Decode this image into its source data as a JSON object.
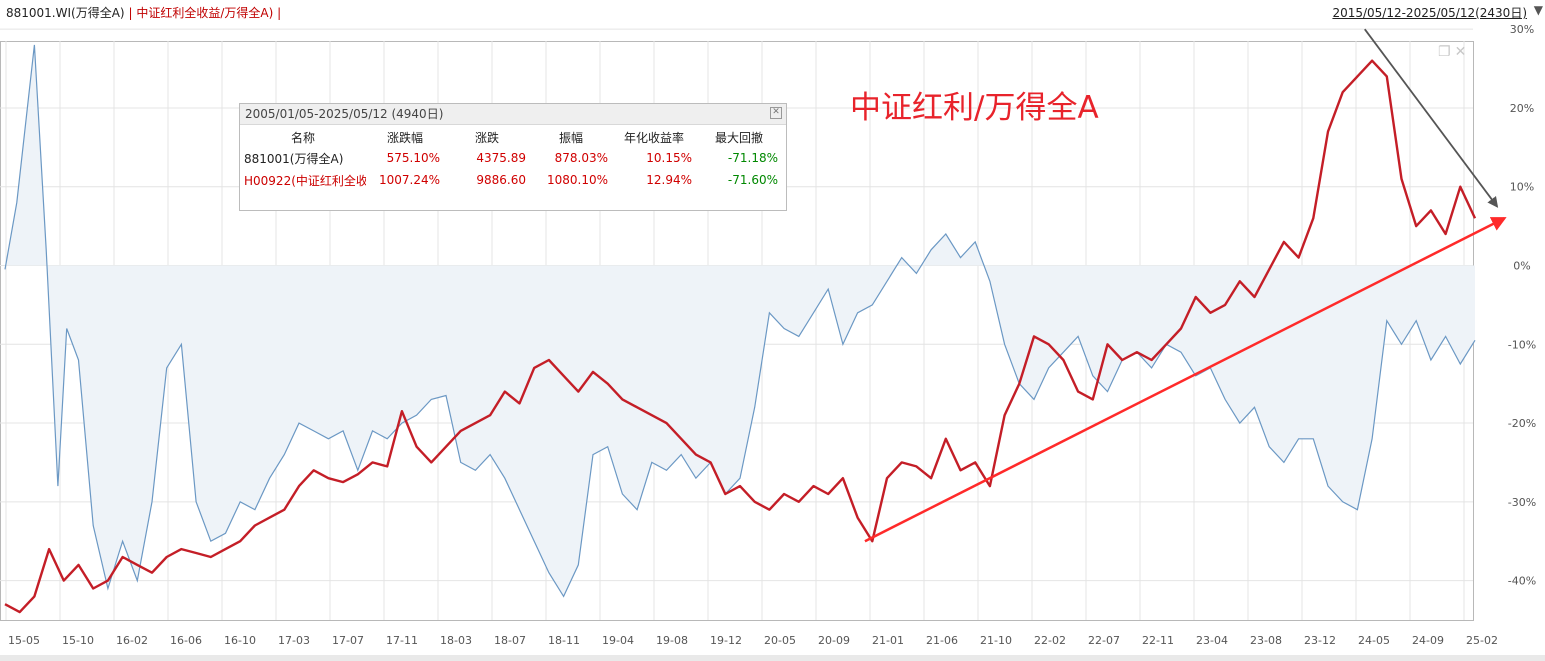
{
  "legend": {
    "main_label": "881001.WI(万得全A)",
    "separator": "|",
    "second_label": "中证红利全收益/万得全A)",
    "trailing_separator": "|"
  },
  "date_range": {
    "label": "2015/05/12-2025/05/12(2430日)",
    "dropdown_icon": "triangle-down-icon"
  },
  "window_controls": {
    "restore_icon": "restore-window-icon",
    "close_icon": "close-icon"
  },
  "annotation": {
    "text": "中证红利/万得全A"
  },
  "stats_panel": {
    "title": "2005/01/05-2025/05/12 (4940日)",
    "columns": [
      "名称",
      "涨跌幅",
      "涨跌",
      "振幅",
      "年化收益率",
      "最大回撤"
    ],
    "rows": [
      {
        "name": "881001(万得全A)",
        "pct": "575.10%",
        "change": "4375.89",
        "amplitude": "878.03%",
        "annual": "10.15%",
        "drawdown": "-71.18%"
      },
      {
        "name": "H00922(中证红利全收",
        "pct": "1007.24%",
        "change": "9886.60",
        "amplitude": "1080.10%",
        "annual": "12.94%",
        "drawdown": "-71.60%"
      }
    ],
    "colors": {
      "positive": "#d00000",
      "negative": "#008800",
      "name": "#222222",
      "name_alt": "#cc0000"
    }
  },
  "chart_data": {
    "type": "line",
    "x_ticks": [
      "15-05",
      "15-10",
      "16-02",
      "16-06",
      "16-10",
      "17-03",
      "17-07",
      "17-11",
      "18-03",
      "18-07",
      "18-11",
      "19-04",
      "19-08",
      "19-12",
      "20-05",
      "20-09",
      "21-01",
      "21-06",
      "21-10",
      "22-02",
      "22-07",
      "22-11",
      "23-04",
      "23-08",
      "23-12",
      "24-05",
      "24-09",
      "25-02"
    ],
    "y_ticks": [
      "30%",
      "20%",
      "10%",
      "0%",
      "-10%",
      "-20%",
      "-30%",
      "-40%"
    ],
    "ylim": [
      -45,
      28.5
    ],
    "series": [
      {
        "color": "#6b98c4",
        "fill": "#eef3f8",
        "style": "area",
        "points": [
          [
            0,
            -0.5
          ],
          [
            0.8,
            8
          ],
          [
            2,
            28
          ],
          [
            2.8,
            2
          ],
          [
            3.6,
            -28
          ],
          [
            4.2,
            -8
          ],
          [
            5,
            -12
          ],
          [
            6,
            -33
          ],
          [
            7,
            -41
          ],
          [
            8,
            -35
          ],
          [
            9,
            -40
          ],
          [
            10,
            -30
          ],
          [
            11,
            -13
          ],
          [
            12,
            -10
          ],
          [
            13,
            -30
          ],
          [
            14,
            -35
          ],
          [
            15,
            -34
          ],
          [
            16,
            -30
          ],
          [
            17,
            -31
          ],
          [
            18,
            -27
          ],
          [
            19,
            -24
          ],
          [
            20,
            -20
          ],
          [
            21,
            -21
          ],
          [
            22,
            -22
          ],
          [
            23,
            -21
          ],
          [
            24,
            -26
          ],
          [
            25,
            -21
          ],
          [
            26,
            -22
          ],
          [
            27,
            -20
          ],
          [
            28,
            -19
          ],
          [
            29,
            -17
          ],
          [
            30,
            -16.5
          ],
          [
            31,
            -25
          ],
          [
            32,
            -26
          ],
          [
            33,
            -24
          ],
          [
            34,
            -27
          ],
          [
            35,
            -31
          ],
          [
            36,
            -35
          ],
          [
            37,
            -39
          ],
          [
            38,
            -42
          ],
          [
            39,
            -38
          ],
          [
            40,
            -24
          ],
          [
            41,
            -23
          ],
          [
            42,
            -29
          ],
          [
            43,
            -31
          ],
          [
            44,
            -25
          ],
          [
            45,
            -26
          ],
          [
            46,
            -24
          ],
          [
            47,
            -27
          ],
          [
            48,
            -25
          ],
          [
            49,
            -29
          ],
          [
            50,
            -27
          ],
          [
            51,
            -18
          ],
          [
            52,
            -6
          ],
          [
            53,
            -8
          ],
          [
            54,
            -9
          ],
          [
            55,
            -6
          ],
          [
            56,
            -3
          ],
          [
            57,
            -10
          ],
          [
            58,
            -6
          ],
          [
            59,
            -5
          ],
          [
            60,
            -2
          ],
          [
            61,
            1
          ],
          [
            62,
            -1
          ],
          [
            63,
            2
          ],
          [
            64,
            4
          ],
          [
            65,
            1
          ],
          [
            66,
            3
          ],
          [
            67,
            -2
          ],
          [
            68,
            -10
          ],
          [
            69,
            -15
          ],
          [
            70,
            -17
          ],
          [
            71,
            -13
          ],
          [
            72,
            -11
          ],
          [
            73,
            -9
          ],
          [
            74,
            -14
          ],
          [
            75,
            -16
          ],
          [
            76,
            -12
          ],
          [
            77,
            -11
          ],
          [
            78,
            -13
          ],
          [
            79,
            -10
          ],
          [
            80,
            -11
          ],
          [
            81,
            -14
          ],
          [
            82,
            -13
          ],
          [
            83,
            -17
          ],
          [
            84,
            -20
          ],
          [
            85,
            -18
          ],
          [
            86,
            -23
          ],
          [
            87,
            -25
          ],
          [
            88,
            -22
          ],
          [
            89,
            -22
          ],
          [
            90,
            -28
          ],
          [
            91,
            -30
          ],
          [
            92,
            -31
          ],
          [
            93,
            -22
          ],
          [
            94,
            -7
          ],
          [
            95,
            -10
          ],
          [
            96,
            -7
          ],
          [
            97,
            -12
          ],
          [
            98,
            -9
          ],
          [
            99,
            -12.5
          ],
          [
            100,
            -9.5
          ]
        ]
      },
      {
        "color": "#c41e27",
        "style": "line",
        "points": [
          [
            0,
            -43
          ],
          [
            1,
            -44
          ],
          [
            2,
            -42
          ],
          [
            3,
            -36
          ],
          [
            4,
            -40
          ],
          [
            5,
            -38
          ],
          [
            6,
            -41
          ],
          [
            7,
            -40
          ],
          [
            8,
            -37
          ],
          [
            9,
            -38
          ],
          [
            10,
            -39
          ],
          [
            11,
            -37
          ],
          [
            12,
            -36
          ],
          [
            13,
            -36.5
          ],
          [
            14,
            -37
          ],
          [
            15,
            -36
          ],
          [
            16,
            -35
          ],
          [
            17,
            -33
          ],
          [
            18,
            -32
          ],
          [
            19,
            -31
          ],
          [
            20,
            -28
          ],
          [
            21,
            -26
          ],
          [
            22,
            -27
          ],
          [
            23,
            -27.5
          ],
          [
            24,
            -26.5
          ],
          [
            25,
            -25
          ],
          [
            26,
            -25.5
          ],
          [
            27,
            -18.5
          ],
          [
            28,
            -23
          ],
          [
            29,
            -25
          ],
          [
            30,
            -23
          ],
          [
            31,
            -21
          ],
          [
            32,
            -20
          ],
          [
            33,
            -19
          ],
          [
            34,
            -16
          ],
          [
            35,
            -17.5
          ],
          [
            36,
            -13
          ],
          [
            37,
            -12
          ],
          [
            38,
            -14
          ],
          [
            39,
            -16
          ],
          [
            40,
            -13.5
          ],
          [
            41,
            -15
          ],
          [
            42,
            -17
          ],
          [
            43,
            -18
          ],
          [
            44,
            -19
          ],
          [
            45,
            -20
          ],
          [
            46,
            -22
          ],
          [
            47,
            -24
          ],
          [
            48,
            -25
          ],
          [
            49,
            -29
          ],
          [
            50,
            -28
          ],
          [
            51,
            -30
          ],
          [
            52,
            -31
          ],
          [
            53,
            -29
          ],
          [
            54,
            -30
          ],
          [
            55,
            -28
          ],
          [
            56,
            -29
          ],
          [
            57,
            -27
          ],
          [
            58,
            -32
          ],
          [
            59,
            -35
          ],
          [
            60,
            -27
          ],
          [
            61,
            -25
          ],
          [
            62,
            -25.5
          ],
          [
            63,
            -27
          ],
          [
            64,
            -22
          ],
          [
            65,
            -26
          ],
          [
            66,
            -25
          ],
          [
            67,
            -28
          ],
          [
            68,
            -19
          ],
          [
            69,
            -15
          ],
          [
            70,
            -9
          ],
          [
            71,
            -10
          ],
          [
            72,
            -12
          ],
          [
            73,
            -16
          ],
          [
            74,
            -17
          ],
          [
            75,
            -10
          ],
          [
            76,
            -12
          ],
          [
            77,
            -11
          ],
          [
            78,
            -12
          ],
          [
            79,
            -10
          ],
          [
            80,
            -8
          ],
          [
            81,
            -4
          ],
          [
            82,
            -6
          ],
          [
            83,
            -5
          ],
          [
            84,
            -2
          ],
          [
            85,
            -4
          ],
          [
            86,
            -0.5
          ],
          [
            87,
            3
          ],
          [
            88,
            1
          ],
          [
            89,
            6
          ],
          [
            90,
            17
          ],
          [
            91,
            22
          ],
          [
            92,
            24
          ],
          [
            93,
            26
          ],
          [
            94,
            24
          ],
          [
            95,
            11
          ],
          [
            96,
            5
          ],
          [
            97,
            7
          ],
          [
            98,
            4
          ],
          [
            99,
            10
          ],
          [
            100,
            6
          ]
        ]
      }
    ],
    "trend_lines": [
      {
        "color": "#ff2a2a",
        "from": [
          58.5,
          -35
        ],
        "to": [
          102,
          6
        ]
      },
      {
        "color": "#555555",
        "from": [
          92.5,
          30
        ],
        "to": [
          101.5,
          7.5
        ]
      }
    ]
  }
}
